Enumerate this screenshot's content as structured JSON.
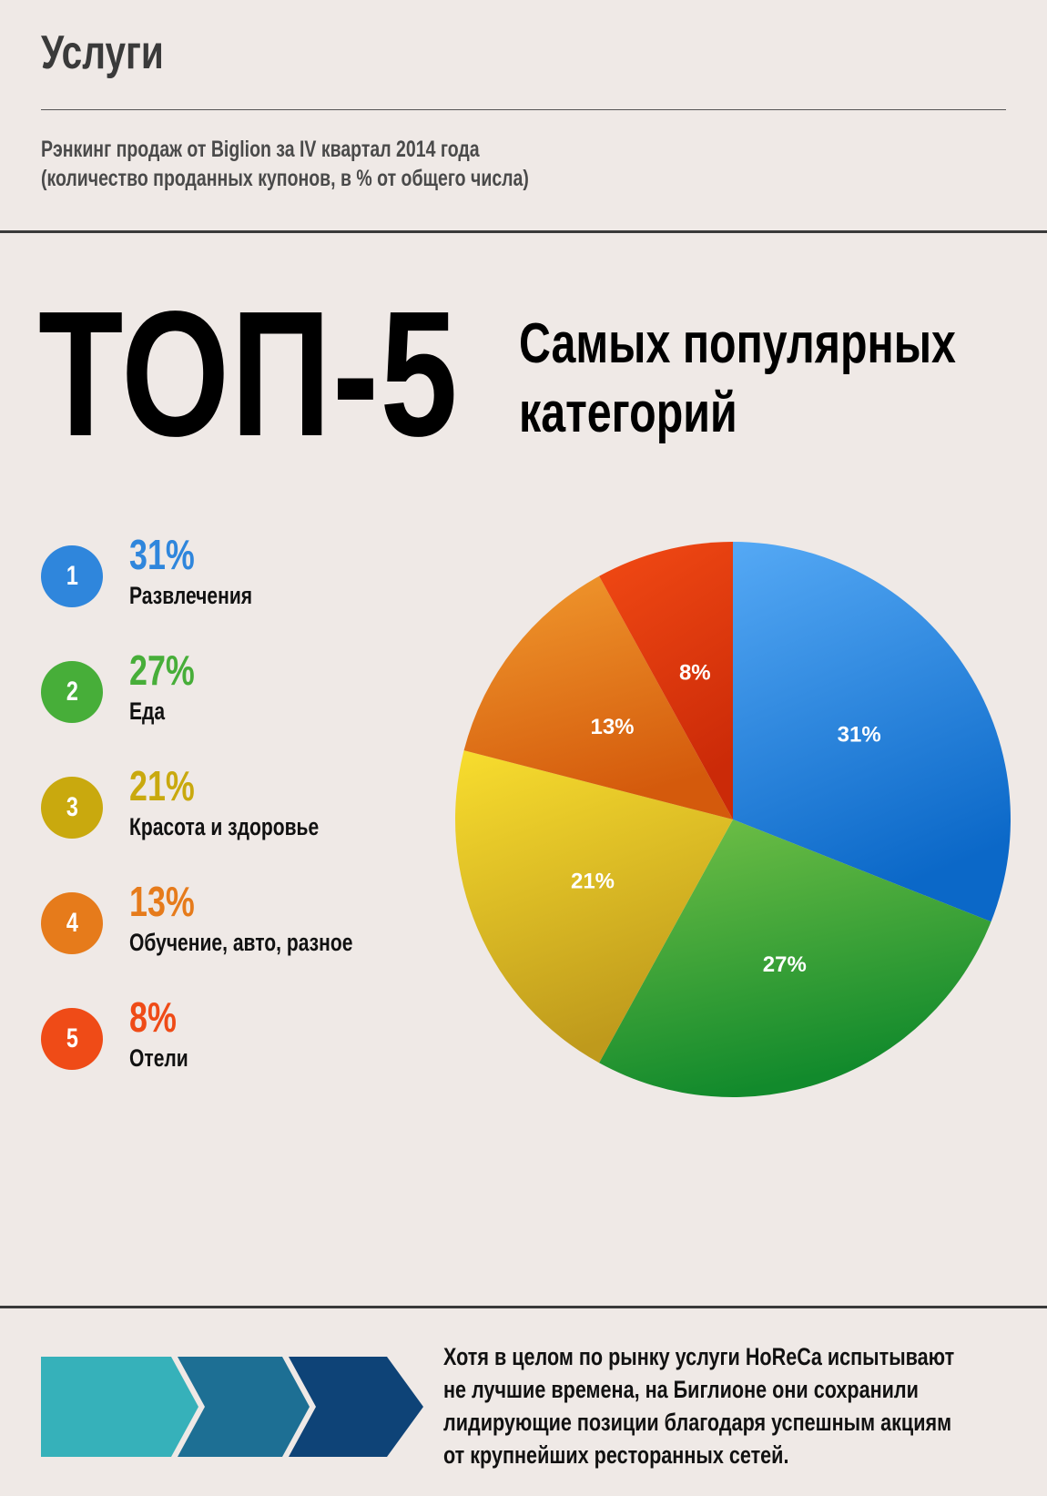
{
  "header": {
    "title": "Услуги",
    "subtitle_line1": "Рэнкинг продаж от Biglion за IV квартал 2014 года",
    "subtitle_line2": "(количество проданных купонов, в % от общего числа)"
  },
  "headline": {
    "big": "ТОП-5",
    "sub_line1": "Самых популярных",
    "sub_line2": "категорий"
  },
  "legend": [
    {
      "rank": "1",
      "pct": "31%",
      "label": "Развлечения",
      "color": "#2f86dc"
    },
    {
      "rank": "2",
      "pct": "27%",
      "label": "Еда",
      "color": "#47ae39"
    },
    {
      "rank": "3",
      "pct": "21%",
      "label": "Красота и здоровье",
      "color": "#c9a90e"
    },
    {
      "rank": "4",
      "pct": "13%",
      "label": "Обучение, авто, разное",
      "color": "#e67b1b"
    },
    {
      "rank": "5",
      "pct": "8%",
      "label": "Отели",
      "color": "#ef4b17"
    }
  ],
  "chart_data": {
    "type": "pie",
    "categories": [
      "Развлечения",
      "Еда",
      "Красота и здоровье",
      "Обучение, авто, разное",
      "Отели"
    ],
    "values": [
      31,
      27,
      21,
      13,
      8
    ],
    "labels": [
      "31%",
      "27%",
      "21%",
      "13%",
      "8%"
    ],
    "colors": [
      [
        "#55a9f5",
        "#0b68c8"
      ],
      [
        "#73c147",
        "#128a2c"
      ],
      [
        "#f8dd2e",
        "#bf9a1c"
      ],
      [
        "#f19a2e",
        "#d45a0c"
      ],
      [
        "#f24a14",
        "#cb2a08"
      ]
    ]
  },
  "footer": {
    "line1": "Хотя в целом по рынку услуги HoReCa испытывают",
    "line2": "не лучшие времена, на Биглионе они сохранили",
    "line3": "лидирующие позиции благодаря успешным акциям",
    "line4": "от крупнейших ресторанных сетей."
  },
  "arrow_colors": [
    "#36b1ba",
    "#1d6f94",
    "#0e4377"
  ]
}
